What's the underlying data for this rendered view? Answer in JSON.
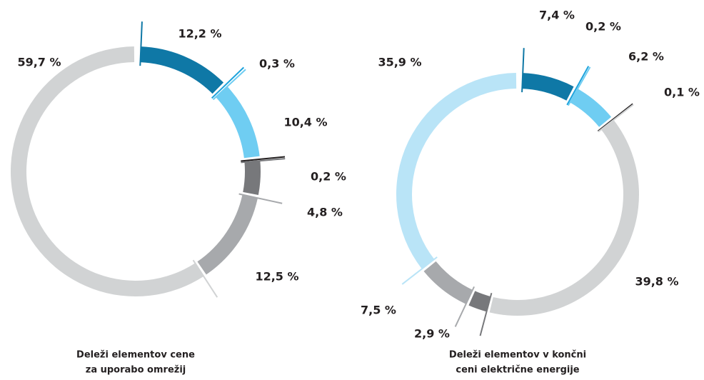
{
  "chart_data": [
    {
      "type": "donut",
      "title": [
        "Deleži elementov cene",
        "za uporabo omrežij"
      ],
      "values": [
        12.2,
        0.3,
        10.4,
        0.2,
        4.8,
        12.5,
        59.7
      ],
      "value_labels": [
        "12,2 %",
        "0,3 %",
        "10,4 %",
        "0,2 %",
        "4,8 %",
        "12,5 %",
        "59,7 %"
      ],
      "colors": [
        "#0f78a6",
        "#1ea3dc",
        "#6fcdf2",
        "#231f20",
        "#77787b",
        "#a7a9ac",
        "#d1d3d4"
      ]
    },
    {
      "type": "donut",
      "title": [
        "Deleži elementov v končni",
        "ceni električne energije"
      ],
      "values": [
        7.4,
        0.2,
        6.2,
        0.1,
        39.8,
        2.9,
        7.5,
        35.9
      ],
      "value_labels": [
        "7,4 %",
        "0,2 %",
        "6,2 %",
        "0,1 %",
        "39,8 %",
        "2,9 %",
        "7,5 %",
        "35,9 %"
      ],
      "colors": [
        "#0f78a6",
        "#1ea3dc",
        "#6fcdf2",
        "#231f20",
        "#d1d3d4",
        "#77787b",
        "#a7a9ac",
        "#b9e4f7"
      ]
    }
  ]
}
